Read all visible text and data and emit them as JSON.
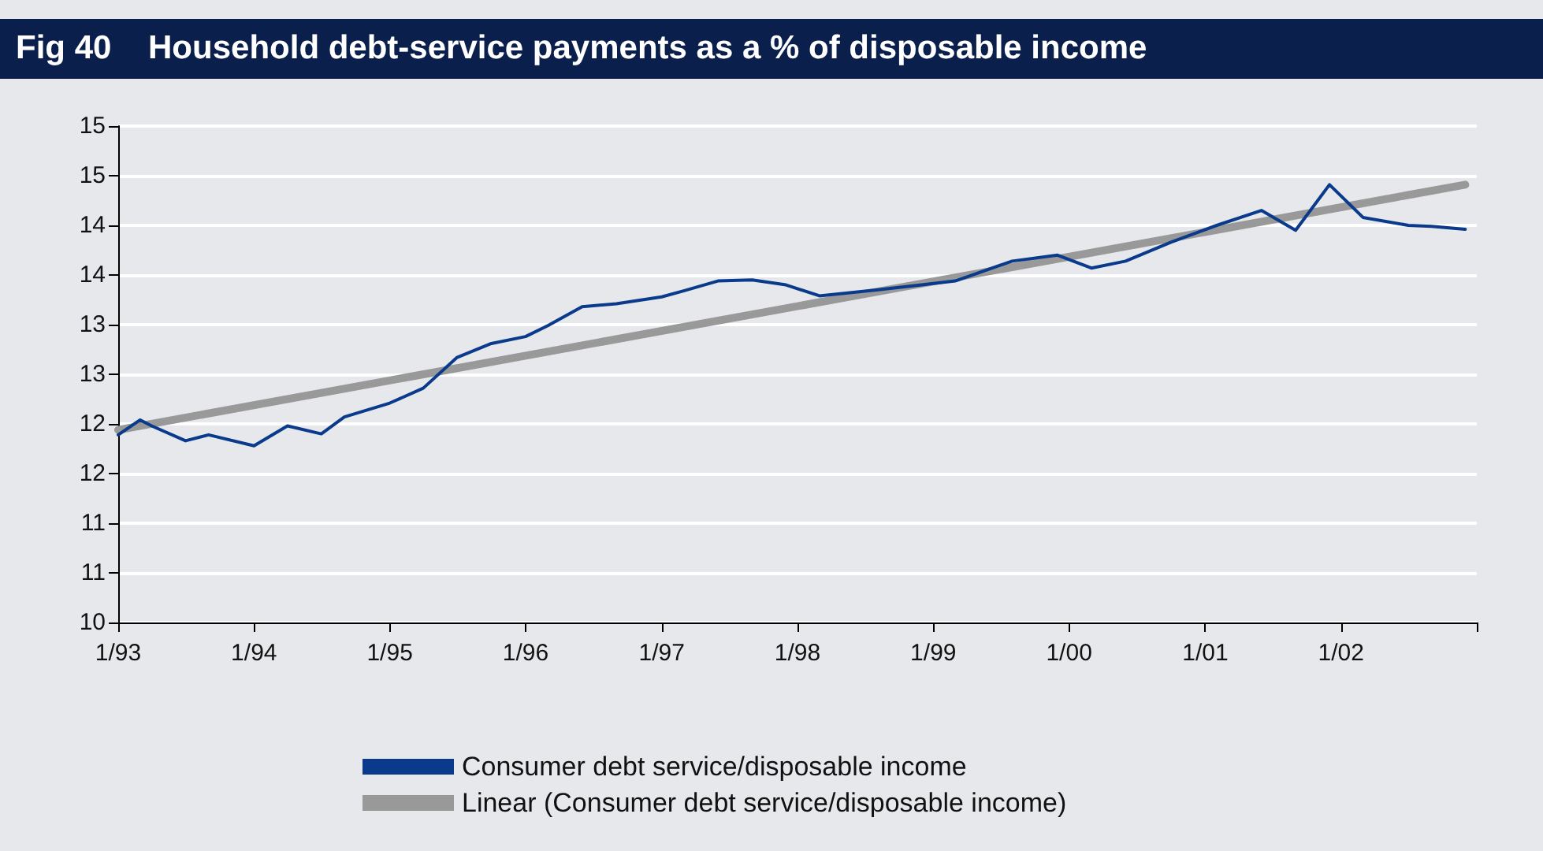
{
  "chart_data": {
    "type": "line",
    "title": "Fig 40    Household debt-service payments as a % of disposable income",
    "xlim": [
      "1993-01",
      "2003-01"
    ],
    "xticks": [
      {
        "value": "1993-01",
        "label": "1/93"
      },
      {
        "value": "1994-01",
        "label": "1/94"
      },
      {
        "value": "1995-01",
        "label": "1/95"
      },
      {
        "value": "1996-01",
        "label": "1/96"
      },
      {
        "value": "1997-01",
        "label": "1/97"
      },
      {
        "value": "1998-01",
        "label": "1/98"
      },
      {
        "value": "1999-01",
        "label": "1/99"
      },
      {
        "value": "2000-01",
        "label": "1/00"
      },
      {
        "value": "2001-01",
        "label": "1/01"
      },
      {
        "value": "2002-01",
        "label": "1/02"
      },
      {
        "value": "2003-01",
        "label": null
      }
    ],
    "ylim": [
      10,
      15
    ],
    "yticks": [
      10,
      {
        "value": 10.5,
        "label": "11"
      },
      11,
      {
        "value": 11.5,
        "label": "12"
      },
      12,
      {
        "value": 12.5,
        "label": "13"
      },
      13,
      {
        "value": 13.5,
        "label": "14"
      },
      14,
      {
        "value": 14.5,
        "label": "15"
      },
      15
    ],
    "grid": "y",
    "legend": "bottom",
    "marker": "none",
    "line_style": "solid",
    "series": [
      {
        "name": "Consumer debt service/disposable income",
        "color": "#0a3a8c",
        "x": [
          "1993-01",
          "1993-03",
          "1993-04",
          "1993-07",
          "1993-09",
          "1994-01",
          "1994-04",
          "1994-07",
          "1994-09",
          "1995-01",
          "1995-04",
          "1995-07",
          "1995-10",
          "1996-01",
          "1996-03",
          "1996-06",
          "1996-09",
          "1997-01",
          "1997-03",
          "1997-06",
          "1997-09",
          "1997-12",
          "1998-03",
          "1998-08",
          "1998-12",
          "1999-03",
          "1999-08",
          "1999-12",
          "2000-03",
          "2000-06",
          "2000-10",
          "2001-02",
          "2001-06",
          "2001-09",
          "2001-12",
          "2002-03",
          "2002-07",
          "2002-09",
          "2002-12"
        ],
        "values": [
          11.89,
          12.04,
          11.98,
          11.83,
          11.89,
          11.78,
          11.98,
          11.9,
          12.07,
          12.21,
          12.36,
          12.67,
          12.81,
          12.88,
          12.99,
          13.18,
          13.21,
          13.28,
          13.34,
          13.44,
          13.45,
          13.4,
          13.29,
          13.35,
          13.4,
          13.44,
          13.64,
          13.7,
          13.57,
          13.64,
          13.83,
          14.0,
          14.15,
          13.95,
          14.41,
          14.08,
          14.0,
          13.99,
          13.96
        ]
      },
      {
        "name": "Linear (Consumer debt service/disposable income)",
        "color": "#999999",
        "x": [
          "1993-01",
          "2002-12"
        ],
        "values": [
          11.94,
          14.41
        ]
      }
    ]
  }
}
